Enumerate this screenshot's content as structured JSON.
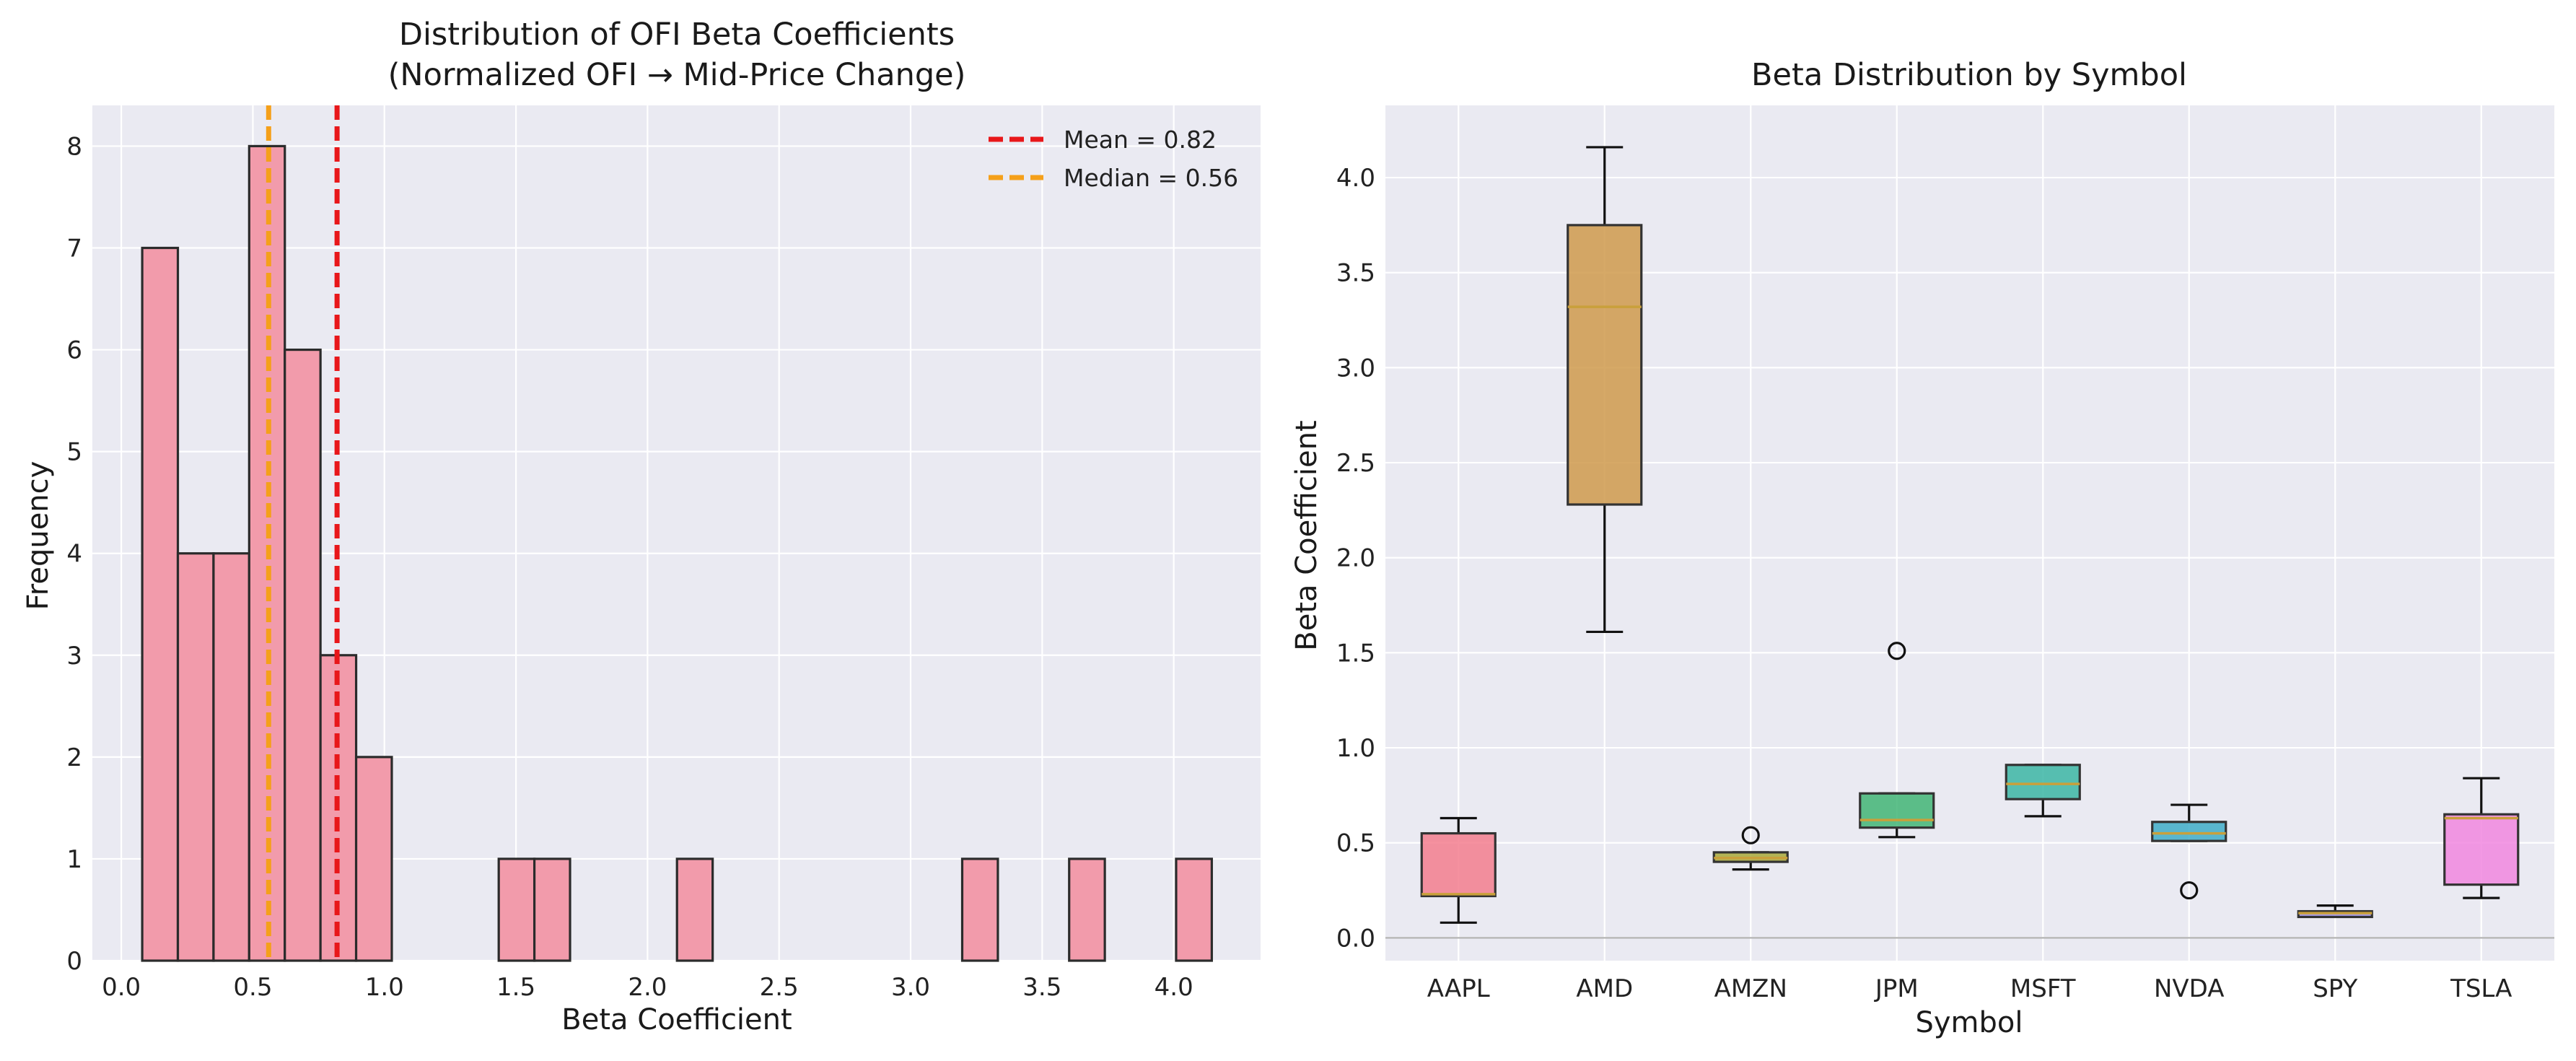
{
  "figure": {
    "background": "#ffffff",
    "axes_bg": "#EAEAF2",
    "grid_color": "#ffffff"
  },
  "chart_data": [
    {
      "type": "histogram",
      "title_line1": "Distribution of OFI Beta Coefficients",
      "title_line2": "(Normalized OFI → Mid-Price Change)",
      "xlabel": "Beta Coefficient",
      "ylabel": "Frequency",
      "xlim": [
        -0.11,
        4.33
      ],
      "ylim": [
        0,
        8.4
      ],
      "xticks": [
        "0.0",
        "0.5",
        "1.0",
        "1.5",
        "2.0",
        "2.5",
        "3.0",
        "3.5",
        "4.0"
      ],
      "xtick_values": [
        0,
        0.5,
        1.0,
        1.5,
        2.0,
        2.5,
        3.0,
        3.5,
        4.0
      ],
      "yticks": [
        "0",
        "1",
        "2",
        "3",
        "4",
        "5",
        "6",
        "7",
        "8"
      ],
      "ytick_values": [
        0,
        1,
        2,
        3,
        4,
        5,
        6,
        7,
        8
      ],
      "bin_start": 0.0795,
      "bin_width": 0.1355,
      "counts": [
        7,
        4,
        4,
        8,
        6,
        3,
        2,
        0,
        0,
        0,
        1,
        1,
        0,
        0,
        0,
        1,
        0,
        0,
        0,
        0,
        0,
        0,
        0,
        1,
        0,
        0,
        1,
        0,
        0,
        1
      ],
      "bar_color": "#F29BAB",
      "bar_edge": "#2b2b2b",
      "lines": [
        {
          "label": "Mean = 0.82",
          "x": 0.82,
          "color": "#E8171A"
        },
        {
          "label": "Median = 0.56",
          "x": 0.56,
          "color": "#F5A01A"
        }
      ],
      "legend_position": "upper right"
    },
    {
      "type": "box",
      "title": "Beta Distribution by Symbol",
      "xlabel": "Symbol",
      "ylabel": "Beta Coefficient",
      "ylim": [
        -0.12,
        4.38
      ],
      "yticks": [
        "0.0",
        "0.5",
        "1.0",
        "1.5",
        "2.0",
        "2.5",
        "3.0",
        "3.5",
        "4.0"
      ],
      "ytick_values": [
        0,
        0.5,
        1.0,
        1.5,
        2.0,
        2.5,
        3.0,
        3.5,
        4.0
      ],
      "zero_line": true,
      "categories": [
        "AAPL",
        "AMD",
        "AMZN",
        "JPM",
        "MSFT",
        "NVDA",
        "SPY",
        "TSLA"
      ],
      "boxes": [
        {
          "whislo": 0.08,
          "q1": 0.22,
          "med": 0.23,
          "q3": 0.55,
          "whishi": 0.63,
          "fliers": [],
          "color": "#F37E8E"
        },
        {
          "whislo": 1.61,
          "q1": 2.28,
          "med": 3.32,
          "q3": 3.75,
          "whishi": 4.16,
          "fliers": [],
          "color": "#CF9A4C"
        },
        {
          "whislo": 0.36,
          "q1": 0.4,
          "med": 0.42,
          "q3": 0.45,
          "whishi": 0.45,
          "fliers": [
            0.54
          ],
          "color": "#A8A93A"
        },
        {
          "whislo": 0.53,
          "q1": 0.58,
          "med": 0.62,
          "q3": 0.76,
          "whishi": 0.76,
          "fliers": [
            1.51
          ],
          "color": "#42B576"
        },
        {
          "whislo": 0.64,
          "q1": 0.73,
          "med": 0.81,
          "q3": 0.91,
          "whishi": 0.91,
          "fliers": [],
          "color": "#3CB6A4"
        },
        {
          "whislo": 0.51,
          "q1": 0.51,
          "med": 0.55,
          "q3": 0.61,
          "whishi": 0.7,
          "fliers": [
            0.25
          ],
          "color": "#3FADC8"
        },
        {
          "whislo": 0.11,
          "q1": 0.11,
          "med": 0.13,
          "q3": 0.14,
          "whishi": 0.17,
          "fliers": [],
          "color": "#A293E8"
        },
        {
          "whislo": 0.21,
          "q1": 0.28,
          "med": 0.63,
          "q3": 0.65,
          "whishi": 0.84,
          "fliers": [],
          "color": "#F187DF"
        }
      ],
      "median_color": "#C9A03B"
    }
  ]
}
